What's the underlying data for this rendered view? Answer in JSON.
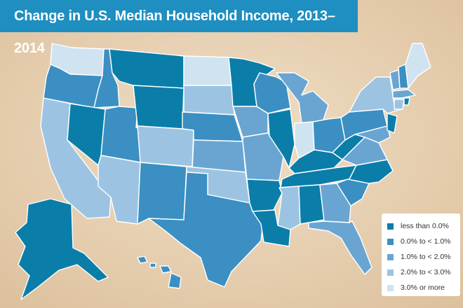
{
  "title": "Change in U.S. Median Household Income, 2013–2014",
  "legend": [
    {
      "label": "less than 0.0%",
      "color": "#0a7ea9"
    },
    {
      "label": "0.0% to < 1.0%",
      "color": "#3b8fc2"
    },
    {
      "label": "1.0% to < 2.0%",
      "color": "#6aa5d2"
    },
    {
      "label": "2.0% to < 3.0%",
      "color": "#9cc4e2"
    },
    {
      "label": "3.0% or more",
      "color": "#cfe3f1"
    }
  ],
  "colors": {
    "background": "#e9d2b3",
    "banner": "#1f8ec0"
  }
}
